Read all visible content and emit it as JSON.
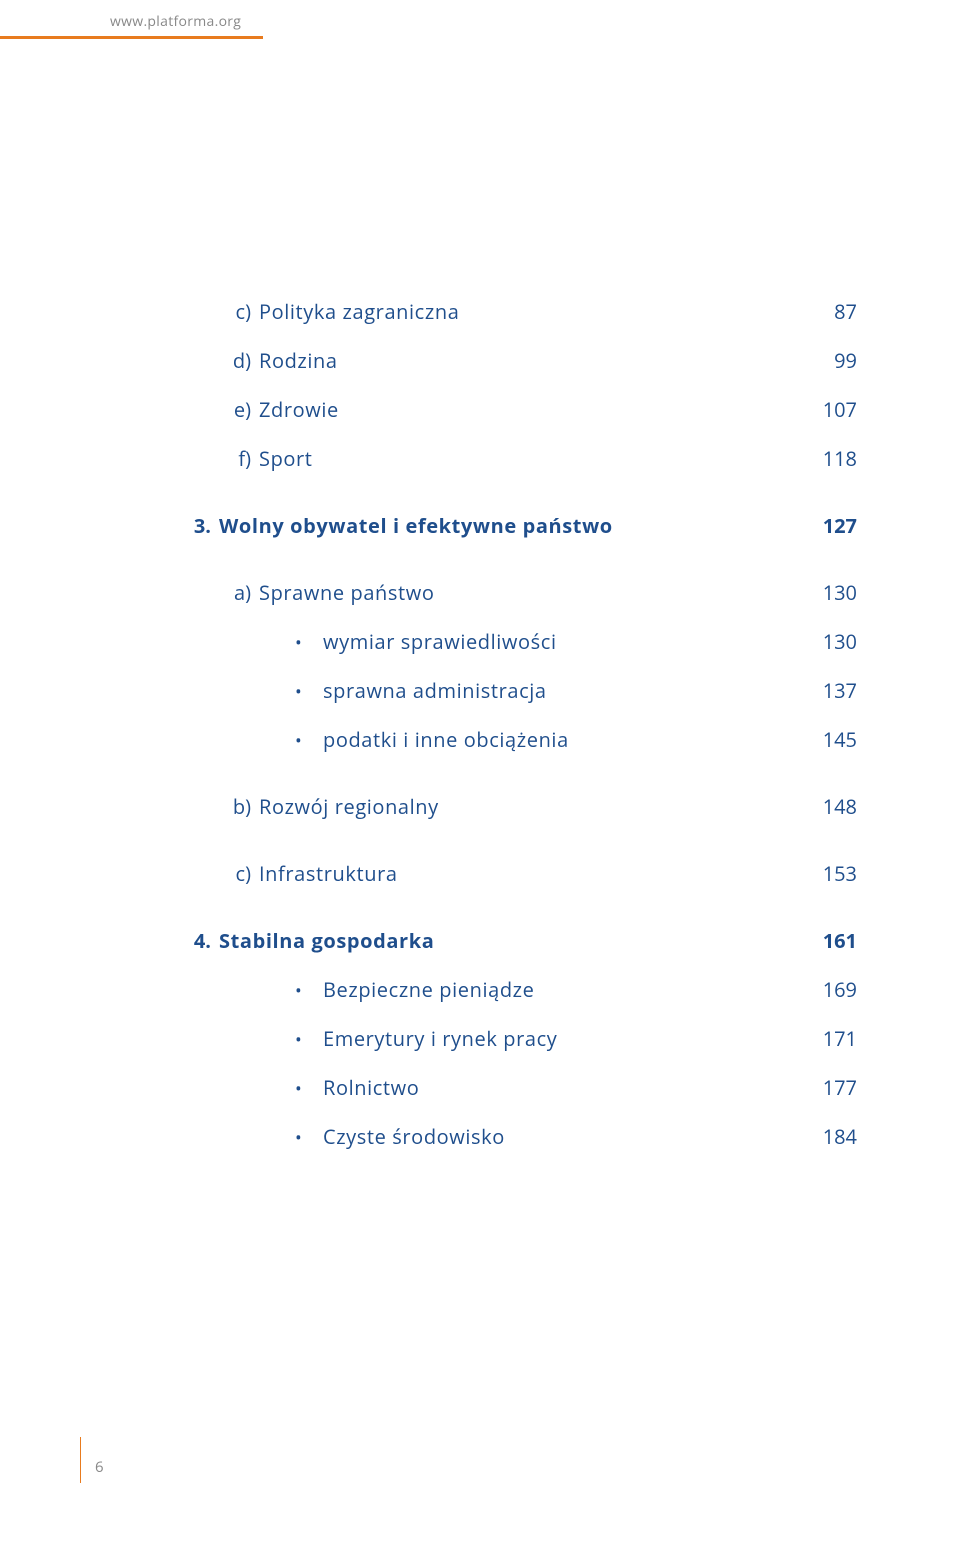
{
  "header": {
    "url": "www.platforma.org"
  },
  "colors": {
    "accent_orange": "#e87b1e",
    "toc_blue": "#1f4e8c",
    "muted_gray": "#888888",
    "background": "#ffffff"
  },
  "toc": {
    "items": [
      {
        "level": "letter",
        "marker": "c)",
        "label": "Polityka zagraniczna",
        "page": "87"
      },
      {
        "level": "letter",
        "marker": "d)",
        "label": "Rodzina",
        "page": "99"
      },
      {
        "level": "letter",
        "marker": "e)",
        "label": "Zdrowie",
        "page": "107"
      },
      {
        "level": "letter",
        "marker": "f)",
        "label": "Sport",
        "page": "118"
      },
      {
        "level": "gap"
      },
      {
        "level": "number",
        "marker": "3.",
        "label": "Wolny obywatel i efektywne państwo",
        "page": "127"
      },
      {
        "level": "gap"
      },
      {
        "level": "letter",
        "marker": "a)",
        "label": "Sprawne państwo",
        "page": "130"
      },
      {
        "level": "bullet",
        "marker": "",
        "label": "wymiar sprawiedliwości",
        "page": "130"
      },
      {
        "level": "bullet",
        "marker": "",
        "label": "sprawna administracja",
        "page": "137"
      },
      {
        "level": "bullet",
        "marker": "",
        "label": "podatki i inne obciążenia",
        "page": "145"
      },
      {
        "level": "gap"
      },
      {
        "level": "letter",
        "marker": "b)",
        "label": "Rozwój regionalny",
        "page": "148"
      },
      {
        "level": "gap"
      },
      {
        "level": "letter",
        "marker": "c)",
        "label": "Infrastruktura",
        "page": "153"
      },
      {
        "level": "gap"
      },
      {
        "level": "number",
        "marker": "4.",
        "label": "Stabilna gospodarka",
        "page": "161"
      },
      {
        "level": "bullet",
        "marker": "",
        "label": "Bezpieczne pieniądze",
        "page": "169"
      },
      {
        "level": "bullet",
        "marker": "",
        "label": "Emerytury i rynek pracy",
        "page": "171"
      },
      {
        "level": "bullet",
        "marker": "",
        "label": "Rolnictwo",
        "page": "177"
      },
      {
        "level": "bullet",
        "marker": "",
        "label": "Czyste środowisko",
        "page": "184"
      }
    ]
  },
  "page_number": "6"
}
